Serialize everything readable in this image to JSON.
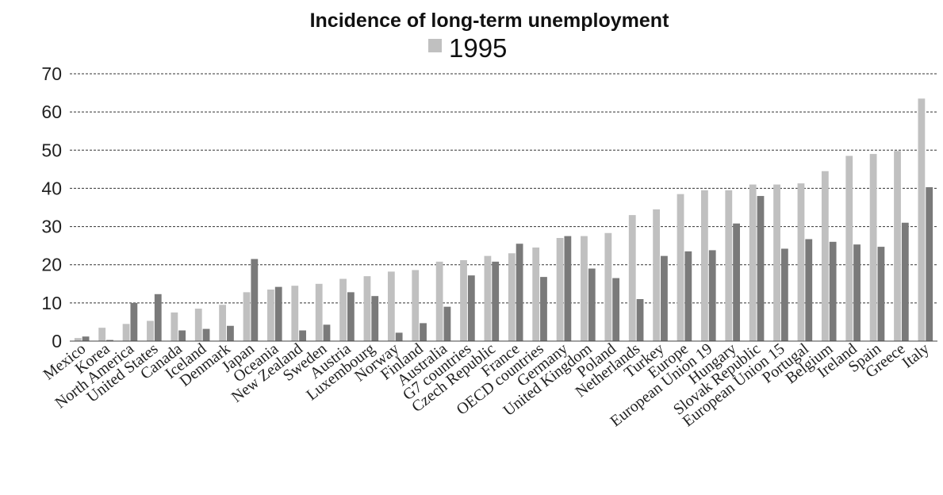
{
  "chart_data": {
    "type": "bar",
    "title": "Incidence of long-term unemployment",
    "ylim": [
      0,
      70
    ],
    "yticks": [
      0,
      10,
      20,
      30,
      40,
      50,
      60,
      70
    ],
    "grid": true,
    "legend_position": "top",
    "categories": [
      "Mexico",
      "Korea",
      "North America",
      "United States",
      "Canada",
      "Iceland",
      "Denmark",
      "Japan",
      "Oceania",
      "New Zealand",
      "Sweden",
      "Austria",
      "Luxembourg",
      "Norway",
      "Finland",
      "Australia",
      "G7 countries",
      "Czech Republic",
      "France",
      "OECD countries",
      "Germany",
      "United Kingdom",
      "Poland",
      "Netherlands",
      "Turkey",
      "Europe",
      "European Union 19",
      "Hungary",
      "Slovak Republic",
      "European Union 15",
      "Portugal",
      "Belgium",
      "Ireland",
      "Spain",
      "Greece",
      "Italy"
    ],
    "series": [
      {
        "name": "1995",
        "color": "#c0c0c0",
        "values": [
          0.8,
          3.5,
          4.5,
          5.3,
          7.5,
          8.5,
          9.5,
          12.8,
          13.5,
          14.5,
          15.0,
          16.3,
          17.0,
          18.2,
          18.6,
          20.8,
          21.2,
          22.3,
          23.0,
          24.5,
          27.0,
          27.5,
          28.3,
          33.0,
          34.5,
          38.5,
          39.5,
          39.5,
          41.0,
          41.0,
          41.3,
          44.5,
          48.5,
          49.0,
          49.8,
          63.5
        ]
      },
      {
        "color": "#7a7a7a",
        "values": [
          1.2,
          0.3,
          10.0,
          12.3,
          2.8,
          3.2,
          4.0,
          21.5,
          14.2,
          2.8,
          4.3,
          12.8,
          11.8,
          2.2,
          4.7,
          9.0,
          17.2,
          20.8,
          25.5,
          16.8,
          27.5,
          19.0,
          16.5,
          11.0,
          22.3,
          23.5,
          23.8,
          30.8,
          38.0,
          24.2,
          26.7,
          26.0,
          25.3,
          24.7,
          31.0,
          40.3
        ]
      }
    ]
  }
}
